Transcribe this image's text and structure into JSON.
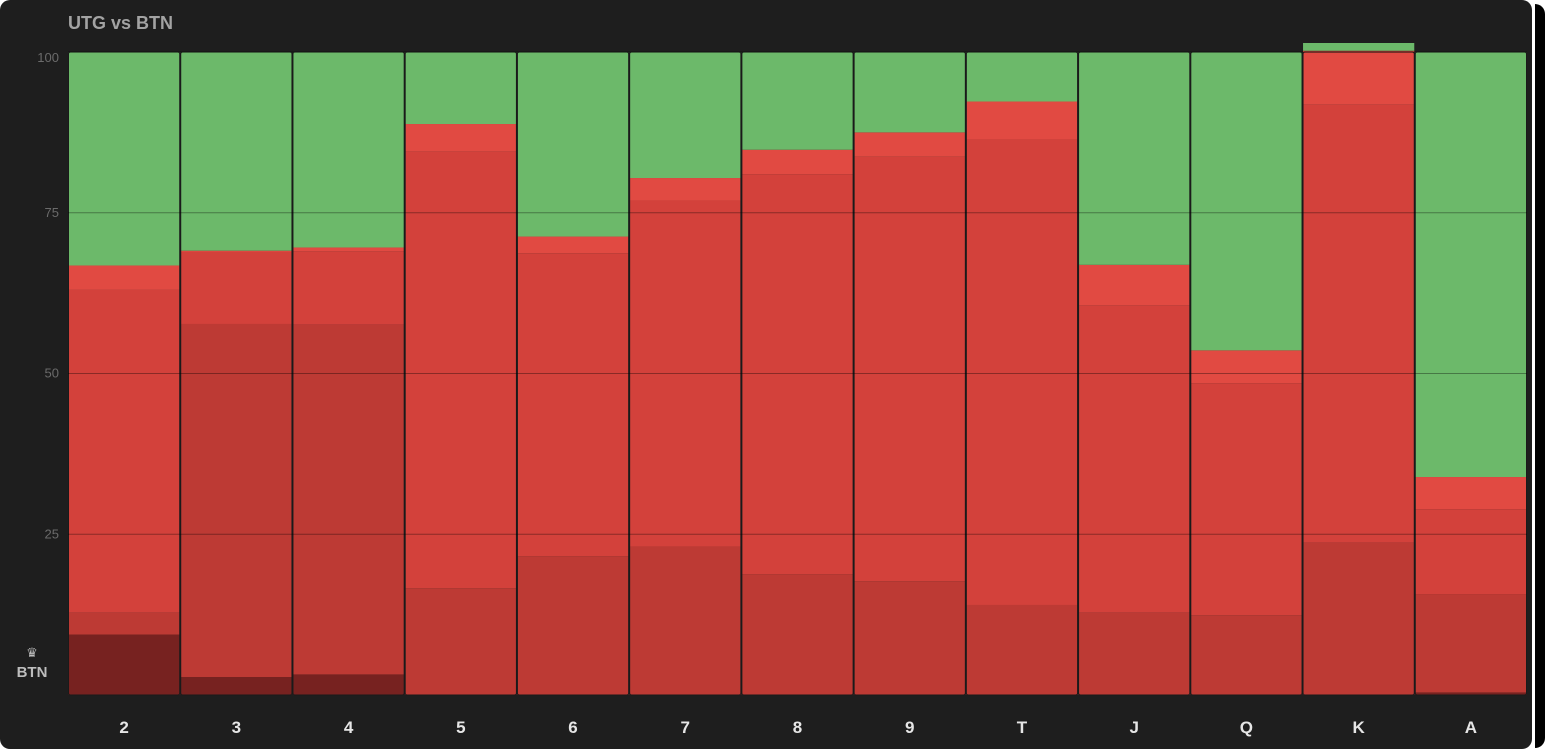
{
  "title": "UTG vs BTN",
  "badge": {
    "icon": "crown-icon",
    "label": "BTN"
  },
  "colors": {
    "background": "#1e1e1e",
    "green": "#6cb96a",
    "red_bright": "#e14a42",
    "red": "#d3413b",
    "red_dark": "#bd3a34",
    "red_darkest": "#772220"
  },
  "chart_data": {
    "type": "bar",
    "stacked": true,
    "title": "UTG vs BTN",
    "xlabel": "",
    "ylabel": "",
    "ylim": [
      0,
      100
    ],
    "yticks": [
      100,
      75,
      50,
      25
    ],
    "grid": true,
    "categories": [
      "2",
      "3",
      "4",
      "5",
      "6",
      "7",
      "8",
      "9",
      "T",
      "J",
      "Q",
      "K",
      "A"
    ],
    "series": [
      {
        "color": "#772220",
        "values": [
          9.4,
          2.8,
          3.2,
          0,
          0,
          0,
          0,
          0,
          0,
          0,
          0,
          0,
          0.4
        ]
      },
      {
        "color": "#bd3a34",
        "values": [
          3.4,
          54.9,
          54.4,
          16.6,
          21.6,
          23.1,
          18.8,
          17.7,
          14.0,
          12.8,
          12.4,
          23.7,
          15.3
        ]
      },
      {
        "color": "#d3413b",
        "values": [
          50.2,
          11.2,
          11.4,
          67.9,
          47.1,
          53.8,
          62.2,
          66.0,
          72.4,
          47.8,
          36.1,
          68.1,
          13.2
        ]
      },
      {
        "color": "#e14a42",
        "values": [
          3.8,
          0.2,
          0.6,
          4.3,
          2.6,
          3.5,
          3.8,
          3.8,
          5.9,
          6.3,
          5.1,
          8.4,
          5.0
        ]
      },
      {
        "color": "#6cb96a",
        "values": [
          33.2,
          30.9,
          30.4,
          11.2,
          28.7,
          19.6,
          15.2,
          12.5,
          7.7,
          33.1,
          46.4,
          1.2,
          66.1
        ]
      }
    ]
  }
}
